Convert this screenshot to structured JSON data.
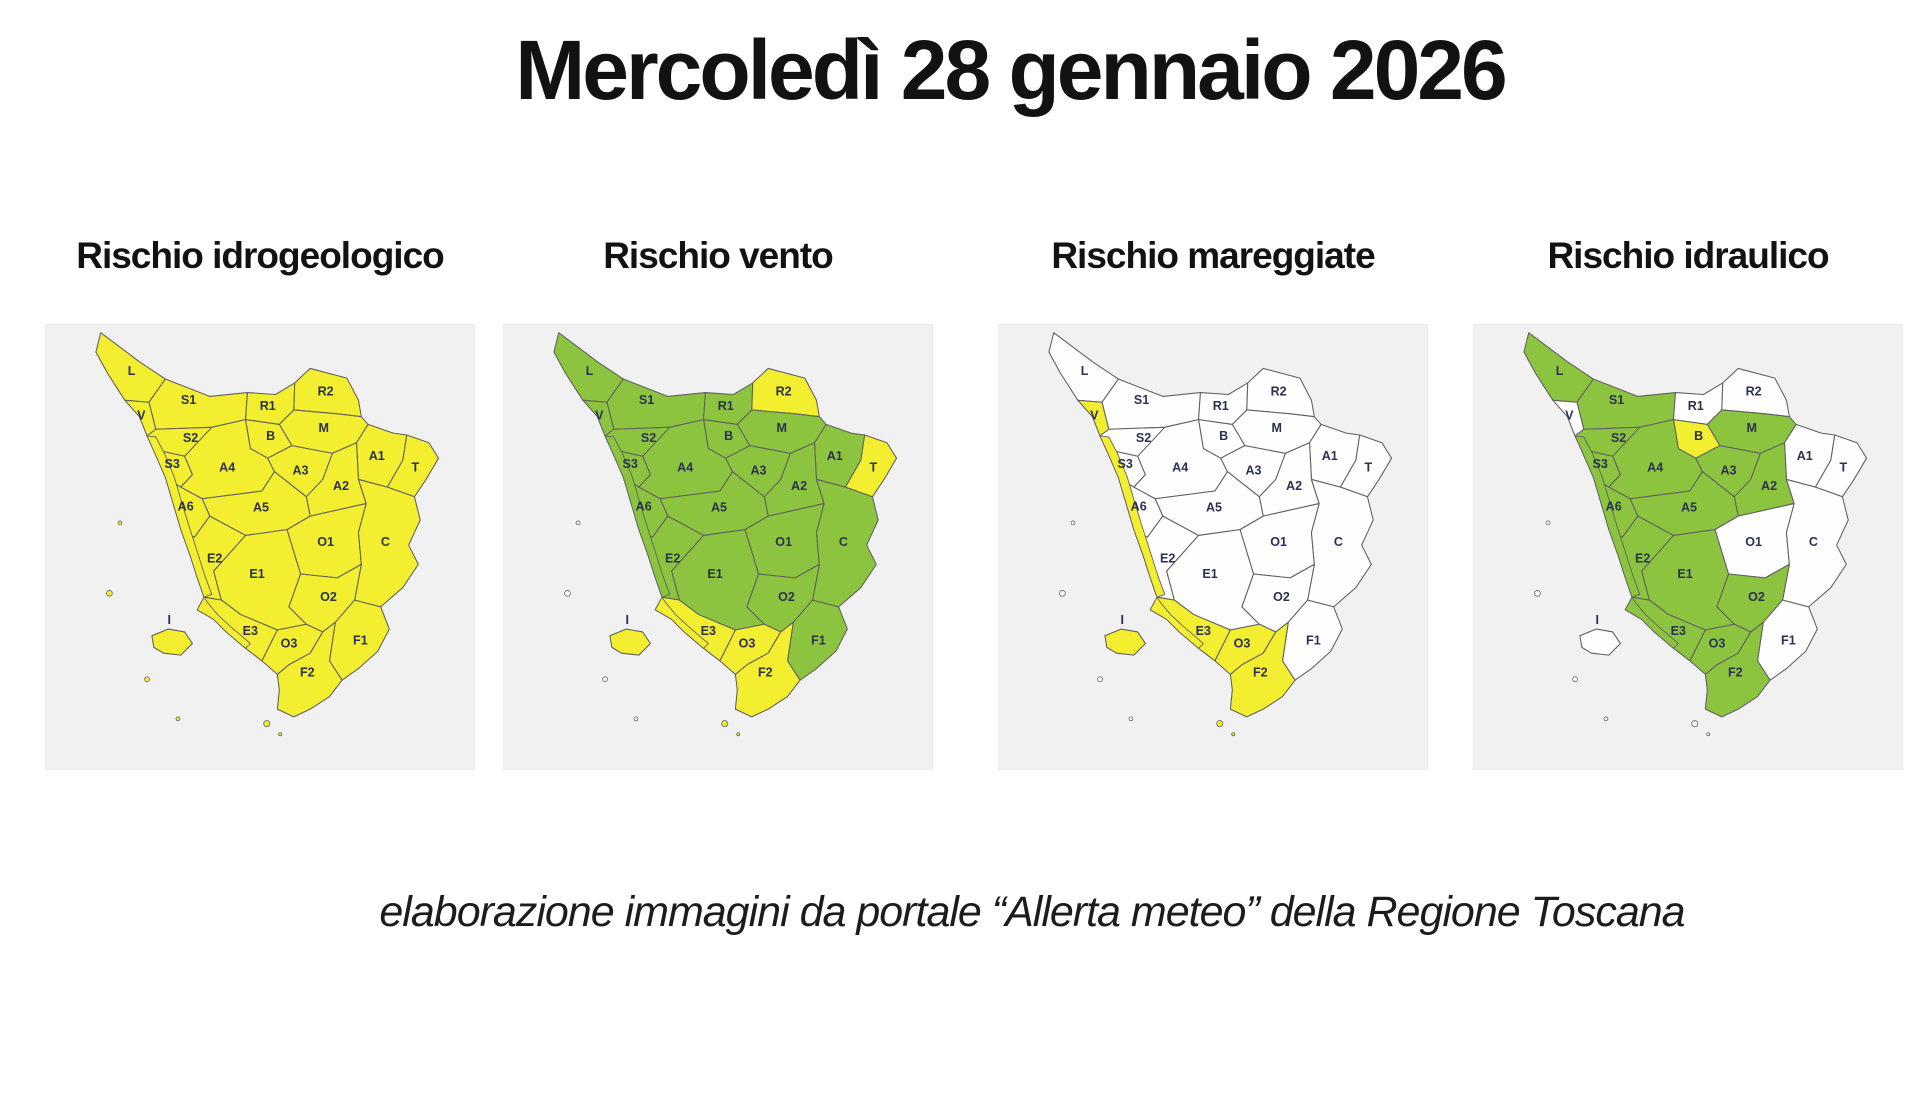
{
  "page": {
    "title": "Mercoledì 28 gennaio 2026",
    "footer": "elaborazione immagini da portale “Allerta meteo” della Regione Toscana"
  },
  "colors": {
    "yellow": "#f3ee2f",
    "green": "#8cc440",
    "white": "#fefefe",
    "sea": "#f1f1f1",
    "border": "#606060",
    "label": "#2b3150"
  },
  "zone_labels": [
    "L",
    "S1",
    "V",
    "S2",
    "S3",
    "R1",
    "R2",
    "M",
    "B",
    "A4",
    "A3",
    "A1",
    "T",
    "A2",
    "A5",
    "A6",
    "O1",
    "C",
    "E2",
    "E1",
    "O2",
    "E3",
    "O3",
    "F1",
    "F2",
    "I"
  ],
  "maps": [
    {
      "title": "Rischio idrogeologico",
      "fills": {
        "L": "yellow",
        "S1": "yellow",
        "V": "yellow",
        "S2": "yellow",
        "S3": "yellow",
        "R1": "yellow",
        "R2": "yellow",
        "M": "yellow",
        "B": "yellow",
        "A4": "yellow",
        "A3": "yellow",
        "A1": "yellow",
        "T": "yellow",
        "A2": "yellow",
        "A5": "yellow",
        "A6": "yellow",
        "O1": "yellow",
        "C": "yellow",
        "E2": "yellow",
        "E1": "yellow",
        "O2": "yellow",
        "E3": "yellow",
        "O3": "yellow",
        "F1": "yellow",
        "F2": "yellow",
        "I": "yellow",
        "coast1": "yellow",
        "coast2": "yellow",
        "minor": "yellow",
        "giglio": "yellow"
      }
    },
    {
      "title": "Rischio vento",
      "fills": {
        "L": "green",
        "S1": "green",
        "V": "green",
        "S2": "green",
        "S3": "green",
        "R1": "green",
        "R2": "yellow",
        "M": "green",
        "B": "green",
        "A4": "green",
        "A3": "green",
        "A1": "green",
        "T": "yellow",
        "A2": "green",
        "A5": "green",
        "A6": "green",
        "O1": "green",
        "C": "green",
        "E2": "green",
        "E1": "green",
        "O2": "green",
        "E3": "yellow",
        "O3": "yellow",
        "F1": "green",
        "F2": "yellow",
        "I": "yellow",
        "coast1": "green",
        "coast2": "yellow",
        "minor": "white",
        "giglio": "yellow"
      }
    },
    {
      "title": "Rischio mareggiate",
      "fills": {
        "L": "white",
        "S1": "white",
        "V": "yellow",
        "S2": "white",
        "S3": "white",
        "R1": "white",
        "R2": "white",
        "M": "white",
        "B": "white",
        "A4": "white",
        "A3": "white",
        "A1": "white",
        "T": "white",
        "A2": "white",
        "A5": "white",
        "A6": "white",
        "O1": "white",
        "C": "white",
        "E2": "white",
        "E1": "white",
        "O2": "white",
        "E3": "yellow",
        "O3": "yellow",
        "F1": "white",
        "F2": "yellow",
        "I": "yellow",
        "coast1": "yellow",
        "coast2": "yellow",
        "minor": "white",
        "giglio": "yellow"
      }
    },
    {
      "title": "Rischio idraulico",
      "fills": {
        "L": "green",
        "S1": "green",
        "V": "white",
        "S2": "green",
        "S3": "green",
        "R1": "white",
        "R2": "white",
        "M": "green",
        "B": "yellow",
        "A4": "green",
        "A3": "green",
        "A1": "white",
        "T": "white",
        "A2": "green",
        "A5": "green",
        "A6": "green",
        "O1": "white",
        "C": "white",
        "E2": "green",
        "E1": "green",
        "O2": "green",
        "E3": "green",
        "O3": "green",
        "F1": "white",
        "F2": "green",
        "I": "white",
        "coast1": "green",
        "coast2": "green",
        "minor": "white",
        "giglio": "white"
      }
    }
  ]
}
